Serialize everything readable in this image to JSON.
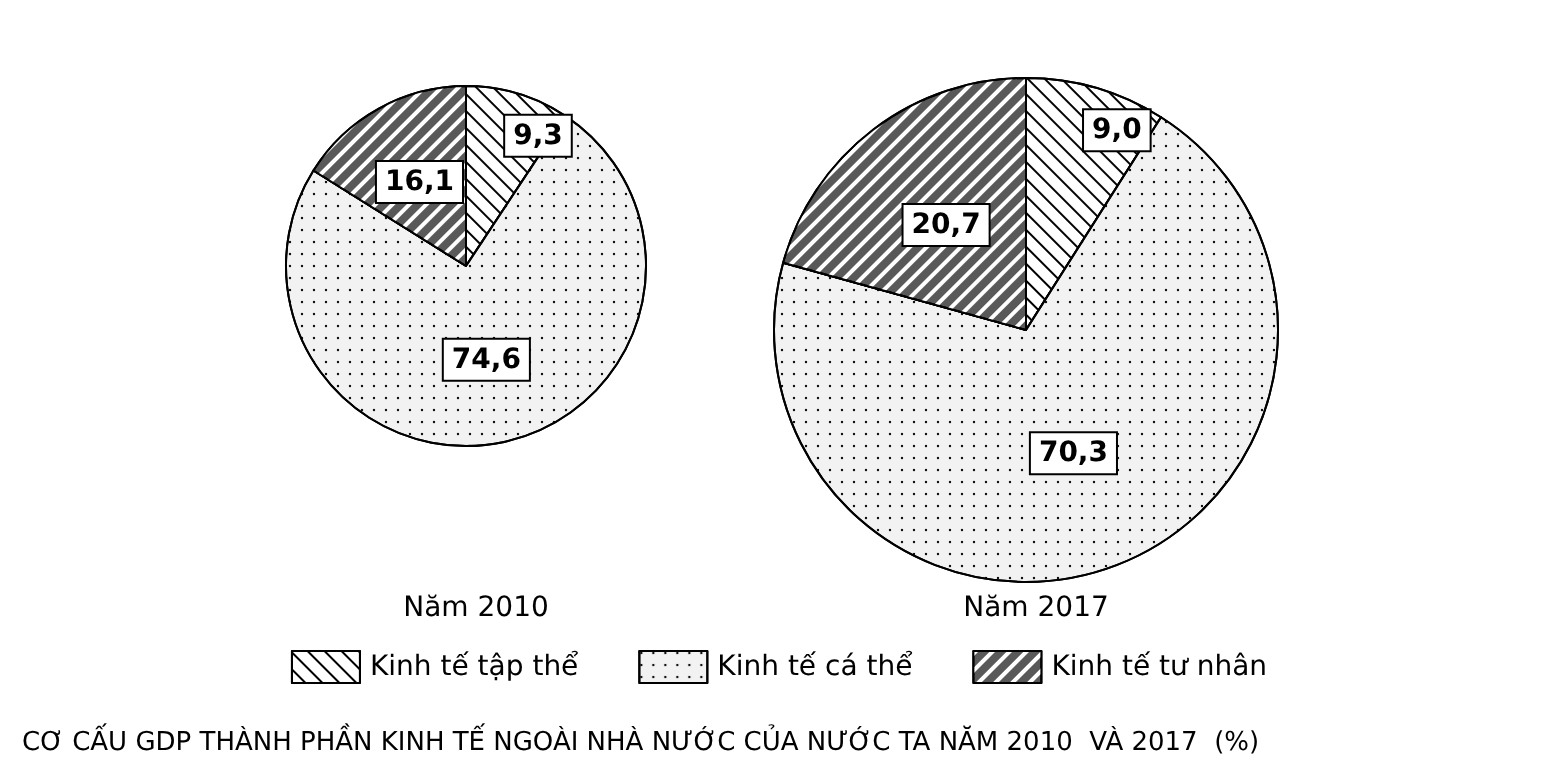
{
  "chart_data": {
    "type": "pie",
    "categories": [
      "Kinh tế tập thể",
      "Kinh tế cá thể",
      "Kinh tế tư nhân"
    ],
    "colors": [
      "#ffffff",
      "#f2f2f2",
      "#595959"
    ],
    "legend": "bottom",
    "series": [
      {
        "name": "Năm 2010",
        "values": [
          9.3,
          74.6,
          16.1
        ],
        "value_labels": [
          "9,3",
          "74,6",
          "16,1"
        ]
      },
      {
        "name": "Năm 2017",
        "values": [
          9.0,
          70.3,
          20.7
        ],
        "value_labels": [
          "9,0",
          "70,3",
          "20,7"
        ]
      }
    ],
    "annotations": [
      "CƠ CẤU GDP THÀNH PHẦN KINH TẾ NGOÀI NHÀ NƯỚC CỦA NƯỚC TA NĂM 2010  VÀ 2017  (%)"
    ]
  }
}
